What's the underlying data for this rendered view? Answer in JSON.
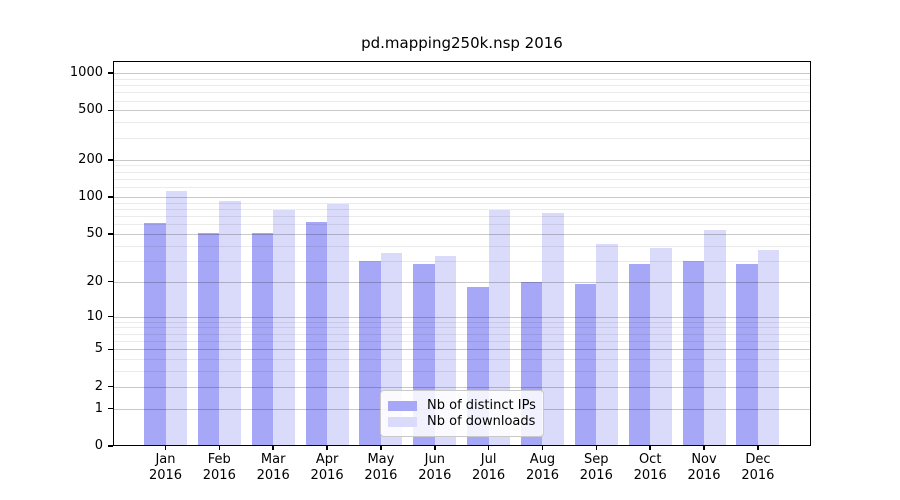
{
  "chart_data": {
    "type": "bar",
    "title": "pd.mapping250k.nsp 2016",
    "categories": [
      "Jan 2016",
      "Feb 2016",
      "Mar 2016",
      "Apr 2016",
      "May 2016",
      "Jun 2016",
      "Jul 2016",
      "Aug 2016",
      "Sep 2016",
      "Oct 2016",
      "Nov 2016",
      "Dec 2016"
    ],
    "series": [
      {
        "name": "Nb of distinct IPs",
        "color": "#a7a7f7",
        "values": [
          61,
          51,
          51,
          62,
          30,
          28,
          18,
          20,
          19,
          28,
          30,
          28
        ]
      },
      {
        "name": "Nb of downloads",
        "color": "#dadafa",
        "values": [
          112,
          93,
          78,
          88,
          35,
          33,
          78,
          74,
          41,
          38,
          54,
          37
        ]
      }
    ],
    "xlabel": "",
    "ylabel": "",
    "y_scale": "log(1+x)",
    "ylim": [
      0,
      1250
    ],
    "y_ticks": [
      0,
      1,
      2,
      5,
      10,
      20,
      50,
      100,
      200,
      500,
      1000
    ],
    "y_minor_gridlines": [
      3,
      4,
      6,
      7,
      8,
      9,
      30,
      40,
      60,
      70,
      80,
      90,
      120,
      140,
      160,
      180,
      300,
      400,
      600,
      700,
      800,
      900
    ],
    "grid": true,
    "legend_position": "lower center",
    "colors": {
      "grid_major": "#c9c9c9",
      "grid_minor": "#ebebeb",
      "frame": "#000000",
      "background": "#ffffff"
    }
  }
}
